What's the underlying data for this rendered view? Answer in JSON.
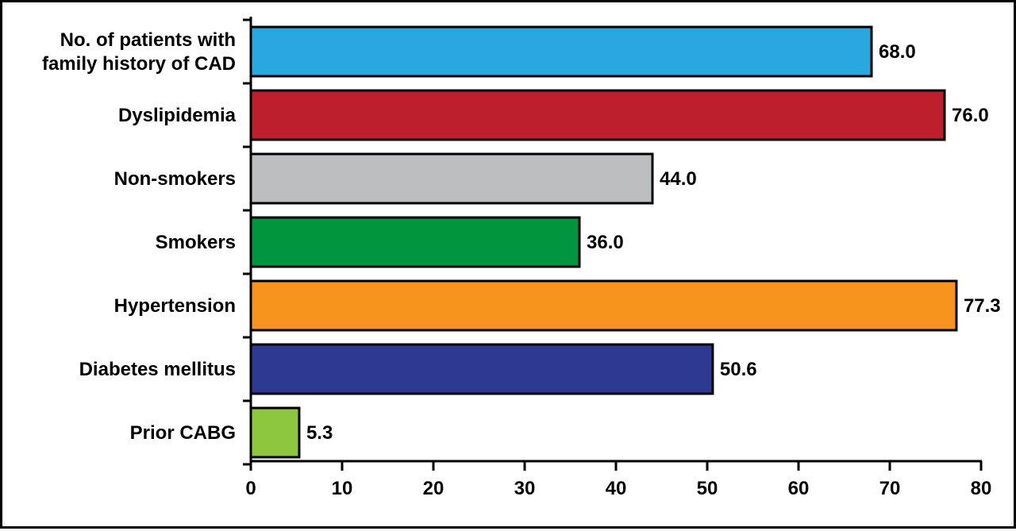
{
  "chart_data": {
    "type": "bar",
    "orientation": "horizontal",
    "title": "",
    "xlabel": "",
    "ylabel": "",
    "xlim": [
      0,
      80
    ],
    "ticks": [
      0,
      10,
      20,
      30,
      40,
      50,
      60,
      70,
      80
    ],
    "grid": false,
    "categories": [
      {
        "lines": [
          "No. of patients with",
          "family history of CAD"
        ]
      },
      {
        "lines": [
          "Dyslipidemia"
        ]
      },
      {
        "lines": [
          "Non-smokers"
        ]
      },
      {
        "lines": [
          "Smokers"
        ]
      },
      {
        "lines": [
          "Hypertension"
        ]
      },
      {
        "lines": [
          "Diabetes mellitus"
        ]
      },
      {
        "lines": [
          "Prior CABG"
        ]
      }
    ],
    "values": [
      68.0,
      76.0,
      44.0,
      36.0,
      77.3,
      50.6,
      5.3
    ],
    "value_labels": [
      "68.0",
      "76.0",
      "44.0",
      "36.0",
      "77.3",
      "50.6",
      "5.3"
    ],
    "colors": [
      "#29a8e0",
      "#bd1f2d",
      "#bcbec0",
      "#00963f",
      "#f7941d",
      "#2e3a92",
      "#8dc63f"
    ]
  }
}
